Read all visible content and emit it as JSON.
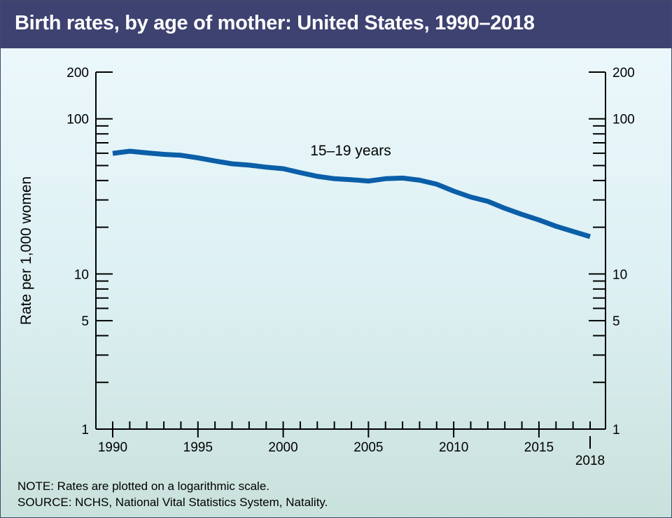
{
  "header": {
    "title": "Birth rates, by age of mother: United States, 1990–2018"
  },
  "notes": {
    "note": "NOTE: Rates are plotted on a logarithmic scale.",
    "source": "SOURCE: NCHS, National Vital Statistics System, Natality."
  },
  "colors": {
    "title_bar": "#3e4271",
    "line": "#0b5ea8",
    "background_top": "#eef9fd",
    "background_bottom": "#c9e1dc"
  },
  "chart_data": {
    "type": "line",
    "title": "Birth rates, by age of mother: United States, 1990–2018",
    "ylabel": "Rate per 1,000 women",
    "xlabel": "",
    "y_scale": "log",
    "ylim": [
      1,
      200
    ],
    "xlim": [
      1990,
      2018
    ],
    "y_tick_labels": [
      "1",
      "5",
      "10",
      "100",
      "200"
    ],
    "y_tick_values": [
      1,
      5,
      10,
      100,
      200
    ],
    "x_tick_labels": [
      "1990",
      "1995",
      "2000",
      "2005",
      "2010",
      "2015",
      "2018"
    ],
    "x_tick_values": [
      1990,
      1995,
      2000,
      2005,
      2010,
      2015,
      2018
    ],
    "grid": false,
    "right_axis_mirrors_left": true,
    "series": [
      {
        "name": "15–19 years",
        "x": [
          1990,
          1991,
          1992,
          1993,
          1994,
          1995,
          1996,
          1997,
          1998,
          1999,
          2000,
          2001,
          2002,
          2003,
          2004,
          2005,
          2006,
          2007,
          2008,
          2009,
          2010,
          2011,
          2012,
          2013,
          2014,
          2015,
          2016,
          2017,
          2018
        ],
        "y": [
          59.9,
          61.8,
          60.3,
          59.0,
          58.2,
          56.0,
          53.5,
          51.3,
          50.3,
          48.8,
          47.7,
          45.0,
          42.6,
          41.1,
          40.5,
          39.7,
          41.1,
          41.5,
          40.2,
          37.9,
          34.2,
          31.3,
          29.4,
          26.5,
          24.2,
          22.3,
          20.3,
          18.8,
          17.4
        ]
      }
    ]
  }
}
